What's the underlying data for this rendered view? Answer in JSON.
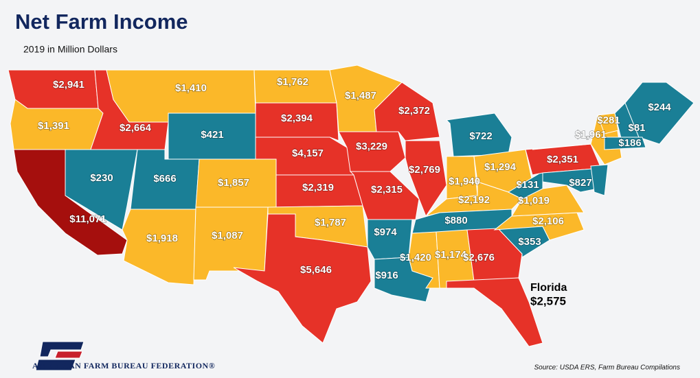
{
  "chart_data": {
    "type": "choropleth",
    "title": "Net Farm Income",
    "subtitle": "2019 in Million Dollars",
    "source": "Source: USDA ERS, Farm Bureau Compilations",
    "organization": "AMERICAN FARM BUREAU FEDERATION®",
    "categories": [
      null,
      null,
      null,
      null,
      null,
      null,
      null,
      null,
      null,
      null,
      null,
      null,
      null,
      null,
      null,
      null,
      null,
      null,
      null,
      null,
      null,
      null,
      null,
      null,
      null,
      null,
      null,
      null,
      null,
      null,
      null,
      null,
      "Florida",
      null,
      null,
      null,
      null,
      null,
      null,
      null,
      null,
      null,
      null,
      null
    ],
    "values": [
      2941,
      1391,
      11071,
      230,
      2664,
      1410,
      421,
      666,
      1857,
      1918,
      1087,
      1762,
      2394,
      4157,
      2319,
      1787,
      5646,
      1487,
      3229,
      2315,
      974,
      916,
      2372,
      2769,
      722,
      1940,
      1294,
      2192,
      880,
      1420,
      1174,
      2676,
      2575,
      353,
      2106,
      1019,
      131,
      2351,
      1961,
      281,
      81,
      244,
      186,
      827
    ],
    "value_labels": [
      "$2,941",
      "$1,391",
      "$11,071",
      "$230",
      "$2,664",
      "$1,410",
      "$421",
      "$666",
      "$1,857",
      "$1,918",
      "$1,087",
      "$1,762",
      "$2,394",
      "$4,157",
      "$2,319",
      "$1,787",
      "$5,646",
      "$1,487",
      "$3,229",
      "$2,315",
      "$974",
      "$916",
      "$2,372",
      "$2,769",
      "$722",
      "$1,940",
      "$1,294",
      "$2,192",
      "$880",
      "$1,420",
      "$1,174",
      "$2,676",
      "$2,575",
      "$353",
      "$2,106",
      "$1,019",
      "$131",
      "$2,351",
      "$1,961",
      "$281",
      "$81",
      "$244",
      "$186",
      "$827"
    ],
    "colors": [
      "#e63228",
      "#fbb829",
      "#a50f0d",
      "#1a7f96",
      "#e63228",
      "#fbb829",
      "#1a7f96",
      "#1a7f96",
      "#fbb829",
      "#fbb829",
      "#fbb829",
      "#fbb829",
      "#e63228",
      "#e63228",
      "#e63228",
      "#fbb829",
      "#e63228",
      "#fbb829",
      "#e63228",
      "#e63228",
      "#1a7f96",
      "#1a7f96",
      "#e63228",
      "#e63228",
      "#1a7f96",
      "#fbb829",
      "#fbb829",
      "#fbb829",
      "#1a7f96",
      "#fbb829",
      "#fbb829",
      "#e63228",
      "#e63228",
      "#1a7f96",
      "#fbb829",
      "#fbb829",
      "#1a7f96",
      "#e63228",
      "#fbb829",
      "#fbb829",
      "#1a7f96",
      "#1a7f96",
      "#1a7f96",
      "#1a7f96"
    ]
  }
}
